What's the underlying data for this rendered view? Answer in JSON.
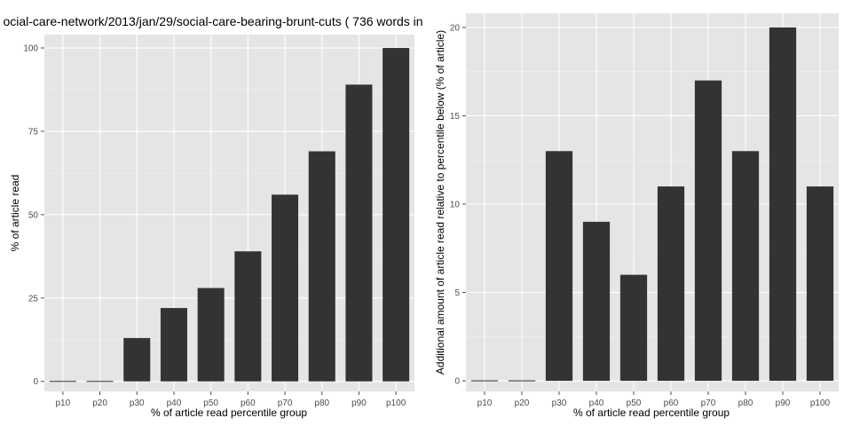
{
  "chart_data": [
    {
      "type": "bar",
      "title": "ocial-care-network/2013/jan/29/social-care-bearing-brunt-cuts ( 736 words in",
      "xlabel": "% of article read percentile group",
      "ylabel": "% of article read",
      "categories": [
        "p10",
        "p20",
        "p30",
        "p40",
        "p50",
        "p60",
        "p70",
        "p80",
        "p90",
        "p100"
      ],
      "values": [
        0,
        0,
        13,
        22,
        28,
        39,
        56,
        69,
        89,
        100
      ],
      "ylim": [
        -3,
        104
      ],
      "yticks": [
        0,
        25,
        50,
        75,
        100
      ],
      "yticklabels": [
        "0",
        "25",
        "50",
        "75",
        "100"
      ],
      "grid": true,
      "bar_color": "#333333",
      "panel_color": "#e5e5e5"
    },
    {
      "type": "bar",
      "title": "",
      "xlabel": "% of article read percentile group",
      "ylabel": "Additional amount of article read relative to percentile below (% of article)",
      "categories": [
        "p10",
        "p20",
        "p30",
        "p40",
        "p50",
        "p60",
        "p70",
        "p80",
        "p90",
        "p100"
      ],
      "values": [
        0,
        0,
        13,
        9,
        6,
        11,
        17,
        13,
        20,
        11
      ],
      "ylim": [
        -0.6,
        20.8
      ],
      "yticks": [
        0,
        5,
        10,
        15,
        20
      ],
      "yticklabels": [
        "0",
        "5",
        "10",
        "15",
        "20"
      ],
      "grid": true,
      "bar_color": "#333333",
      "panel_color": "#e5e5e5"
    }
  ]
}
